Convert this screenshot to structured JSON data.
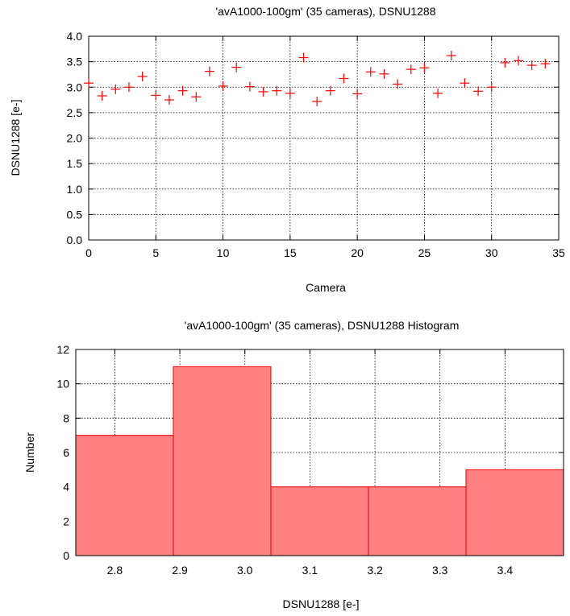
{
  "chart_data": [
    {
      "type": "scatter",
      "title": "'avA1000-100gm' (35 cameras), DSNU1288",
      "xlabel": "Camera",
      "ylabel": "DSNU1288 [e-]",
      "xlim": [
        0,
        35
      ],
      "ylim": [
        0,
        4
      ],
      "xticks": [
        "0",
        "5",
        "10",
        "15",
        "20",
        "25",
        "30",
        "35"
      ],
      "yticks": [
        "0.0",
        "0.5",
        "1.0",
        "1.5",
        "2.0",
        "2.5",
        "3.0",
        "3.5",
        "4.0"
      ],
      "grid": true,
      "marker_color": "#ff0000",
      "x": [
        0,
        1,
        2,
        3,
        4,
        5,
        6,
        7,
        8,
        9,
        10,
        11,
        12,
        13,
        14,
        15,
        16,
        17,
        18,
        19,
        20,
        21,
        22,
        23,
        24,
        25,
        26,
        27,
        28,
        29,
        30,
        31,
        32,
        33,
        34
      ],
      "y": [
        3.08,
        2.83,
        2.96,
        3.0,
        3.21,
        2.84,
        2.75,
        2.93,
        2.81,
        3.31,
        3.02,
        3.39,
        3.01,
        2.91,
        2.93,
        2.88,
        3.58,
        2.72,
        2.93,
        3.17,
        2.87,
        3.3,
        3.26,
        3.06,
        3.35,
        3.38,
        2.88,
        3.62,
        3.08,
        2.92,
        3.0,
        3.48,
        3.52,
        3.43,
        3.46
      ]
    },
    {
      "type": "bar",
      "title": "'avA1000-100gm' (35 cameras), DSNU1288 Histogram",
      "xlabel": "DSNU1288 [e-]",
      "ylabel": "Number",
      "xlim": [
        2.74,
        3.49
      ],
      "ylim": [
        0,
        12
      ],
      "xticks": [
        "2.8",
        "2.9",
        "3.0",
        "3.1",
        "3.2",
        "3.3",
        "3.4"
      ],
      "yticks": [
        "0",
        "2",
        "4",
        "6",
        "8",
        "10",
        "12"
      ],
      "grid": true,
      "bar_color": "#ff8080",
      "bins": [
        {
          "from": 2.74,
          "to": 2.89,
          "count": 7
        },
        {
          "from": 2.89,
          "to": 3.04,
          "count": 11
        },
        {
          "from": 3.04,
          "to": 3.19,
          "count": 4
        },
        {
          "from": 3.19,
          "to": 3.34,
          "count": 4
        },
        {
          "from": 3.34,
          "to": 3.49,
          "count": 5
        }
      ]
    }
  ]
}
